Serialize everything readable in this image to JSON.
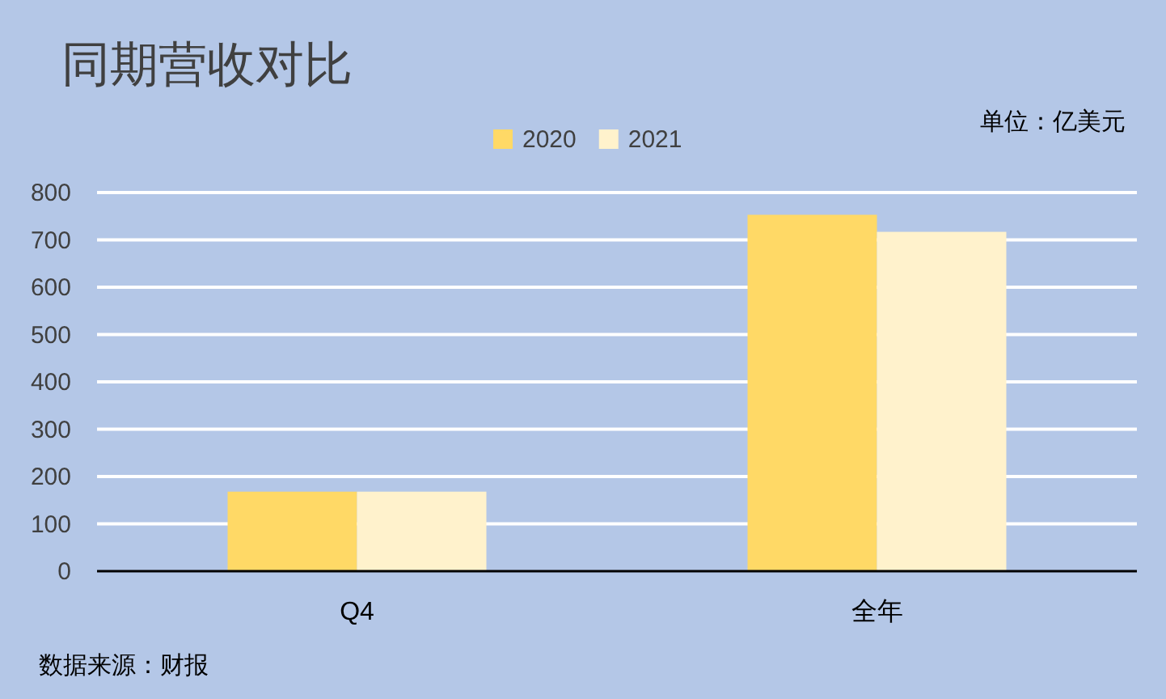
{
  "chart_data": {
    "type": "bar",
    "title": "同期营收对比",
    "subtitle": "单位：亿美元",
    "categories": [
      "Q4",
      "全年"
    ],
    "series": [
      {
        "name": "2020",
        "color": "#ffd966",
        "values": [
          168,
          753
        ]
      },
      {
        "name": "2021",
        "color": "#fff2cc",
        "values": [
          168,
          717
        ]
      }
    ],
    "ylim": [
      0,
      800
    ],
    "yticks": [
      0,
      100,
      200,
      300,
      400,
      500,
      600,
      700,
      800
    ],
    "grid": "y",
    "legend": "top",
    "annotations": [
      "数据来源：财报"
    ]
  }
}
